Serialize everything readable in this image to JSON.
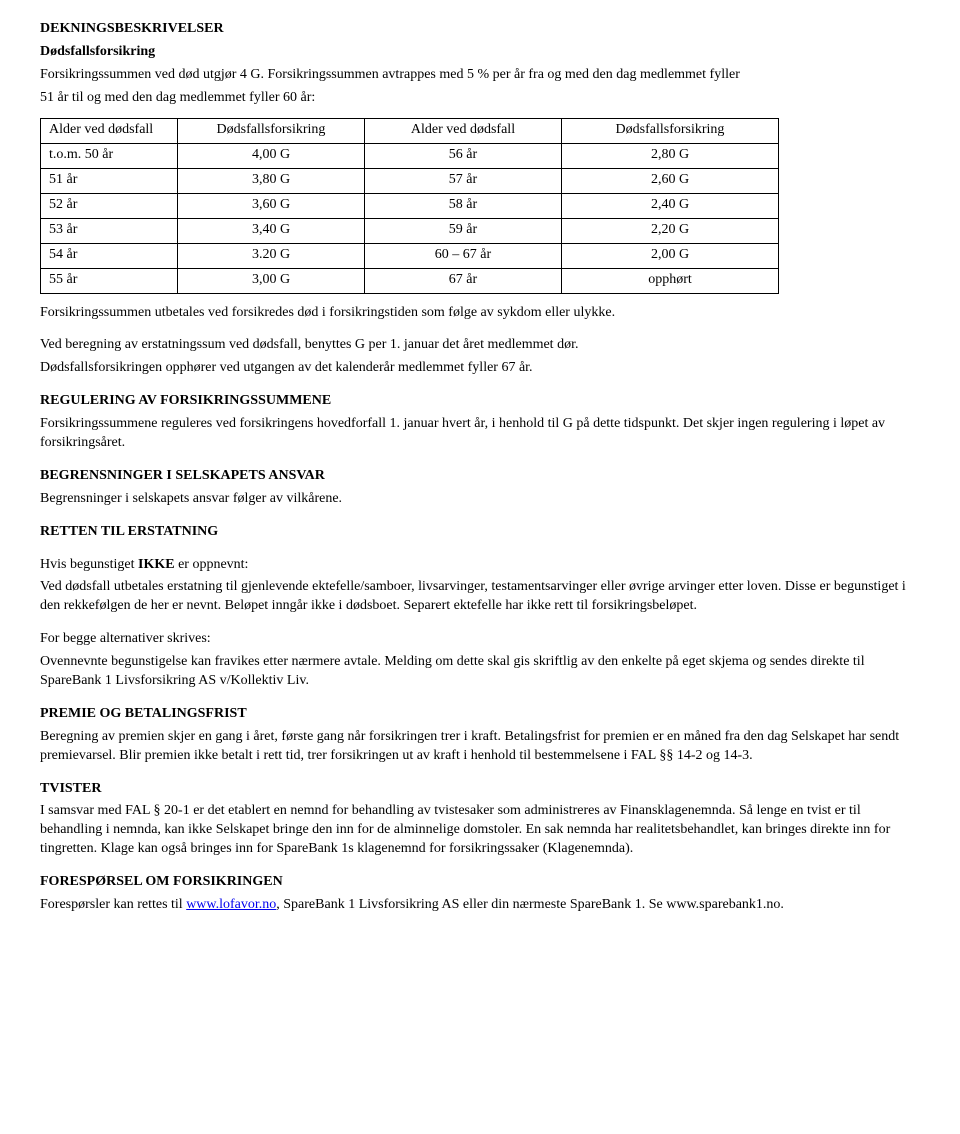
{
  "heading": "DEKNINGSBESKRIVELSER",
  "sub1": "Dødsfallsforsikring",
  "line1a": "Forsikringssummen ved død utgjør 4 G. Forsikringssummen avtrappes med 5 % per år fra og med den dag medlemmet fyller",
  "line1b": "51 år til og med den dag medlemmet fyller 60 år:",
  "table": {
    "headers": [
      "Alder ved dødsfall",
      "Dødsfallsforsikring",
      "Alder ved dødsfall",
      "Dødsfallsforsikring"
    ],
    "rows": [
      [
        "t.o.m. 50 år",
        "4,00 G",
        "56 år",
        "2,80 G"
      ],
      [
        "51 år",
        "3,80 G",
        "57 år",
        "2,60 G"
      ],
      [
        "52 år",
        "3,60 G",
        "58 år",
        "2,40 G"
      ],
      [
        "53 år",
        "3,40 G",
        "59 år",
        "2,20 G"
      ],
      [
        "54 år",
        "3.20 G",
        "60 – 67 år",
        "2,00 G"
      ],
      [
        "55 år",
        "3,00 G",
        "67 år",
        "opphørt"
      ]
    ]
  },
  "p2": "Forsikringssummen utbetales ved forsikredes død i forsikringstiden som følge av sykdom eller ulykke.",
  "p3a": "Ved beregning av erstatningssum ved dødsfall, benyttes G per 1. januar det året medlemmet dør.",
  "p3b": "Dødsfallsforsikringen opphører ved utgangen av det kalenderår medlemmet fyller 67 år.",
  "reg_h": "REGULERING AV FORSIKRINGSSUMMENE",
  "reg_p": "Forsikringssummene reguleres ved forsikringens hovedforfall 1. januar hvert år, i henhold til G på dette tidspunkt. Det skjer ingen regulering i løpet av forsikringsåret.",
  "beg_h": "BEGRENSNINGER I SELSKAPETS ANSVAR",
  "beg_p": "Begrensninger i selskapets ansvar følger av vilkårene.",
  "rett_h": "RETTEN TIL ERSTATNING",
  "rett_p1_lead": "Hvis begunstiget ",
  "rett_p1_bold": "IKKE",
  "rett_p1_tail": " er oppnevnt:",
  "rett_p1b": "Ved dødsfall utbetales erstatning til gjenlevende ektefelle/samboer, livsarvinger, testamentsarvinger eller øvrige arvinger etter loven. Disse er begunstiget i den rekkefølgen de her er nevnt. Beløpet inngår ikke i dødsboet. Separert ektefelle har ikke rett til forsikringsbeløpet.",
  "rett_p2a": "For begge alternativer skrives:",
  "rett_p2b": "Ovennevnte begunstigelse kan fravikes etter nærmere avtale. Melding om dette skal gis skriftlig av den enkelte på eget skjema og sendes direkte til SpareBank 1 Livsforsikring AS v/Kollektiv Liv.",
  "prem_h": "PREMIE OG BETALINGSFRIST",
  "prem_p": "Beregning av premien skjer en gang i året, første gang når forsikringen trer i kraft. Betalingsfrist for premien er en måned fra den dag Selskapet har sendt premievarsel. Blir premien ikke betalt i rett tid, trer forsikringen ut av kraft i henhold til bestemmelsene i FAL §§ 14-2 og 14-3.",
  "tvist_h": "TVISTER",
  "tvist_p": "I samsvar med FAL § 20-1 er det etablert en nemnd for behandling av tvistesaker som administreres av Finansklagenemnda. Så lenge en tvist er til behandling i nemnda, kan ikke Selskapet bringe den inn for de alminnelige domstoler. En sak nemnda har realitetsbehandlet, kan bringes direkte inn for tingretten. Klage kan også bringes inn for SpareBank 1s klagenemnd for forsikringssaker (Klagenemnda).",
  "fores_h": "FORESPØRSEL OM FORSIKRINGEN",
  "fores_p_lead": "Forespørsler kan rettes til ",
  "fores_link": "www.lofavor.no",
  "fores_p_tail": ", SpareBank 1 Livsforsikring AS eller din nærmeste SpareBank 1. Se www.sparebank1.no."
}
